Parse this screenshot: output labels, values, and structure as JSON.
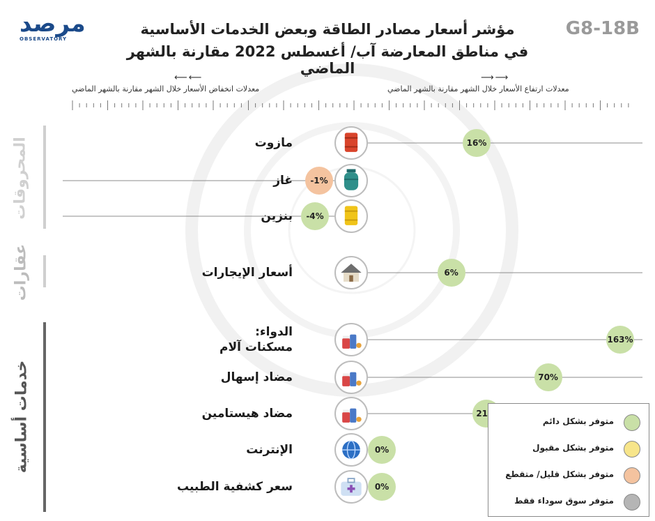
{
  "header": {
    "code": "G8-18B",
    "title_line1": "مؤشر أسعار مصادر الطاقة وبعض الخدمات الأساسية",
    "title_line2": "في مناطق المعارضة آب/ أغسطس 2022 مقارنة بالشهر الماضي",
    "logo_text": "مرصد",
    "logo_sub": "OBSERVATORY",
    "increase_label": "معدلات ارتفاع الأسعار خلال الشهر مقارنة بالشهر الماضي",
    "decrease_label": "معدلات انخفاض الأسعار خلال الشهر مقارنة بالشهر الماضي"
  },
  "categories": {
    "fuel": "المحروقات",
    "realestate": "عقارات",
    "services": "خدمات أساسية"
  },
  "colors": {
    "green": "#c9e0a7",
    "yellow": "#f7e58a",
    "orange": "#f4c39f",
    "gray": "#b5b5b5",
    "line": "#8c8c8c"
  },
  "legend": {
    "items": [
      {
        "label": "متوفر بشكل دائم",
        "color": "#c9e0a7"
      },
      {
        "label": "متوفر بشكل مقبول",
        "color": "#f7e58a"
      },
      {
        "label": "متوفر بشكل قليل/ متقطع",
        "color": "#f4c39f"
      },
      {
        "label": "متوفر سوق سوداء فقط",
        "color": "#b5b5b5"
      }
    ]
  },
  "chart_data": {
    "type": "bar",
    "title": "مؤشر أسعار مصادر الطاقة وبعض الخدمات الأساسية في مناطق المعارضة آب/ أغسطس 2022 مقارنة بالشهر الماضي",
    "items": [
      {
        "label": "مازوت",
        "value": 16,
        "display": "16%",
        "availability": "green",
        "icon": "oil-barrel-icon",
        "group": "fuel"
      },
      {
        "label": "غاز",
        "value": -1,
        "display": "-1%",
        "availability": "orange",
        "icon": "gas-cylinder-icon",
        "group": "fuel"
      },
      {
        "label": "بنزين",
        "value": -4,
        "display": "-4%",
        "availability": "green",
        "icon": "fuel-barrel-icon",
        "group": "fuel"
      },
      {
        "label": "أسعار الإيجارات",
        "value": 6,
        "display": "6%",
        "availability": "green",
        "icon": "house-icon",
        "group": "realestate"
      },
      {
        "label": "الدواء:",
        "label2": "مسكنات آلام",
        "value": 163,
        "display": "163%",
        "availability": "green",
        "icon": "medicine-icon",
        "group": "services"
      },
      {
        "label": "مضاد إسهال",
        "value": 70,
        "display": "70%",
        "availability": "green",
        "icon": "medicine-icon",
        "group": "services"
      },
      {
        "label": "مضاد هيستامين",
        "value": 21,
        "display": "21%",
        "availability": "green",
        "icon": "medicine-icon",
        "group": "services"
      },
      {
        "label": "الإنترنت",
        "value": 0,
        "display": "0%",
        "availability": "green",
        "icon": "globe-icon",
        "group": "services"
      },
      {
        "label": "سعر كشفية الطبيب",
        "value": 0,
        "display": "0%",
        "availability": "green",
        "icon": "medical-kit-icon",
        "group": "services"
      }
    ]
  }
}
